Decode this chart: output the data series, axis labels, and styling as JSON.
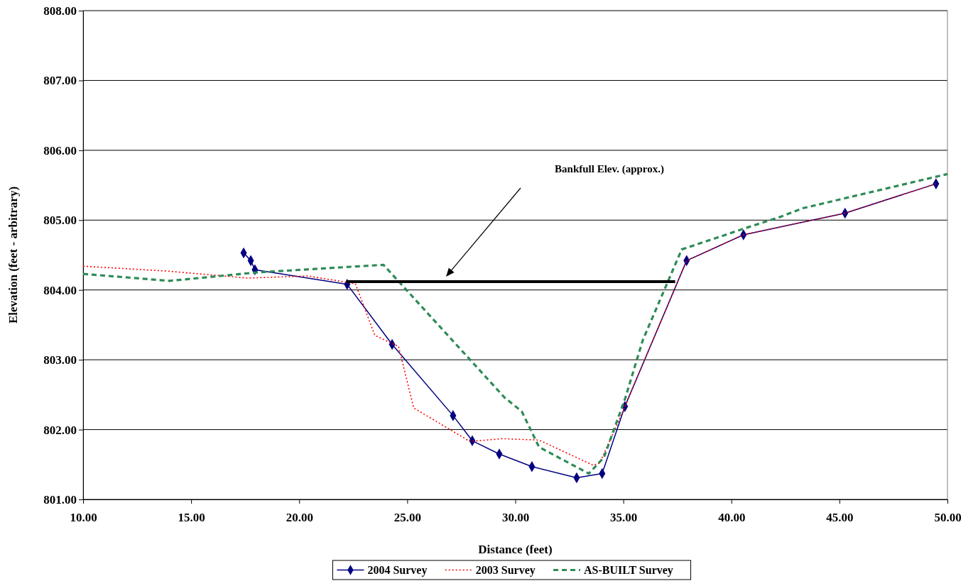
{
  "chart_data": {
    "type": "line",
    "xlabel": "Distance (feet)",
    "ylabel": "Elevation (feet - arbitrary)",
    "xlim": [
      10,
      50
    ],
    "ylim": [
      801,
      808
    ],
    "xticks": [
      {
        "value": 10,
        "label": "10.00"
      },
      {
        "value": 15,
        "label": "15.00"
      },
      {
        "value": 20,
        "label": "20.00"
      },
      {
        "value": 25,
        "label": "25.00"
      },
      {
        "value": 30,
        "label": "30.00"
      },
      {
        "value": 35,
        "label": "35.00"
      },
      {
        "value": 40,
        "label": "40.00"
      },
      {
        "value": 45,
        "label": "45.00"
      },
      {
        "value": 50,
        "label": "50.00"
      }
    ],
    "yticks": [
      {
        "value": 801,
        "label": "801.00"
      },
      {
        "value": 802,
        "label": "802.00"
      },
      {
        "value": 803,
        "label": "803.00"
      },
      {
        "value": 804,
        "label": "804.00"
      },
      {
        "value": 805,
        "label": "805.00"
      },
      {
        "value": 806,
        "label": "806.00"
      },
      {
        "value": 807,
        "label": "807.00"
      },
      {
        "value": 808,
        "label": "808.00"
      }
    ],
    "grid": "y",
    "legend": "bottom",
    "series": [
      {
        "name": "2004 Survey",
        "color": "#000080",
        "marker": "diamond",
        "line_style": "solid",
        "x": [
          17.43,
          17.76,
          17.95,
          22.22,
          24.3,
          27.12,
          28.01,
          29.26,
          30.77,
          32.84,
          34.02,
          35.07,
          37.93,
          40.56,
          45.26,
          49.47
        ],
        "values": [
          804.53,
          804.42,
          804.29,
          804.08,
          803.22,
          802.2,
          801.84,
          801.65,
          801.47,
          801.31,
          801.37,
          802.33,
          804.42,
          804.79,
          805.1,
          805.52
        ]
      },
      {
        "name": "2003 Survey",
        "color": "#ff0000",
        "marker": "none",
        "line_style": "dotted",
        "x": [
          10,
          13.9,
          17.6,
          20.4,
          22.6,
          23.5,
          24.6,
          25.3,
          27.9,
          29.4,
          31.1,
          33.6,
          33.9,
          34.8,
          35.3,
          37.93,
          40.56,
          45.26,
          49.47
        ],
        "values": [
          804.34,
          804.27,
          804.17,
          804.2,
          804.09,
          803.35,
          803.19,
          802.31,
          801.83,
          801.87,
          801.85,
          801.49,
          801.52,
          802.13,
          802.5,
          804.42,
          804.79,
          805.1,
          805.52
        ]
      },
      {
        "name": "AS-BUILT Survey",
        "color": "#2e8b57",
        "marker": "none",
        "line_style": "dashed",
        "x": [
          10,
          14,
          18,
          23.9,
          26.2,
          28,
          29.5,
          30.3,
          31.1,
          33.4,
          34.1,
          35.1,
          35.9,
          37.7,
          40.7,
          42.3,
          43.3,
          50
        ],
        "values": [
          804.23,
          804.13,
          804.25,
          804.36,
          803.58,
          802.97,
          802.46,
          802.26,
          801.75,
          801.37,
          801.6,
          802.46,
          803.28,
          804.58,
          804.89,
          805.05,
          805.17,
          805.66
        ]
      },
      {
        "color": "#000000",
        "marker": "none",
        "line_style": "solid",
        "x": [
          22.2,
          37.4
        ],
        "values": [
          804.12,
          804.12
        ]
      }
    ],
    "annotations": [
      "Bankfull Elev. (approx.)"
    ]
  }
}
